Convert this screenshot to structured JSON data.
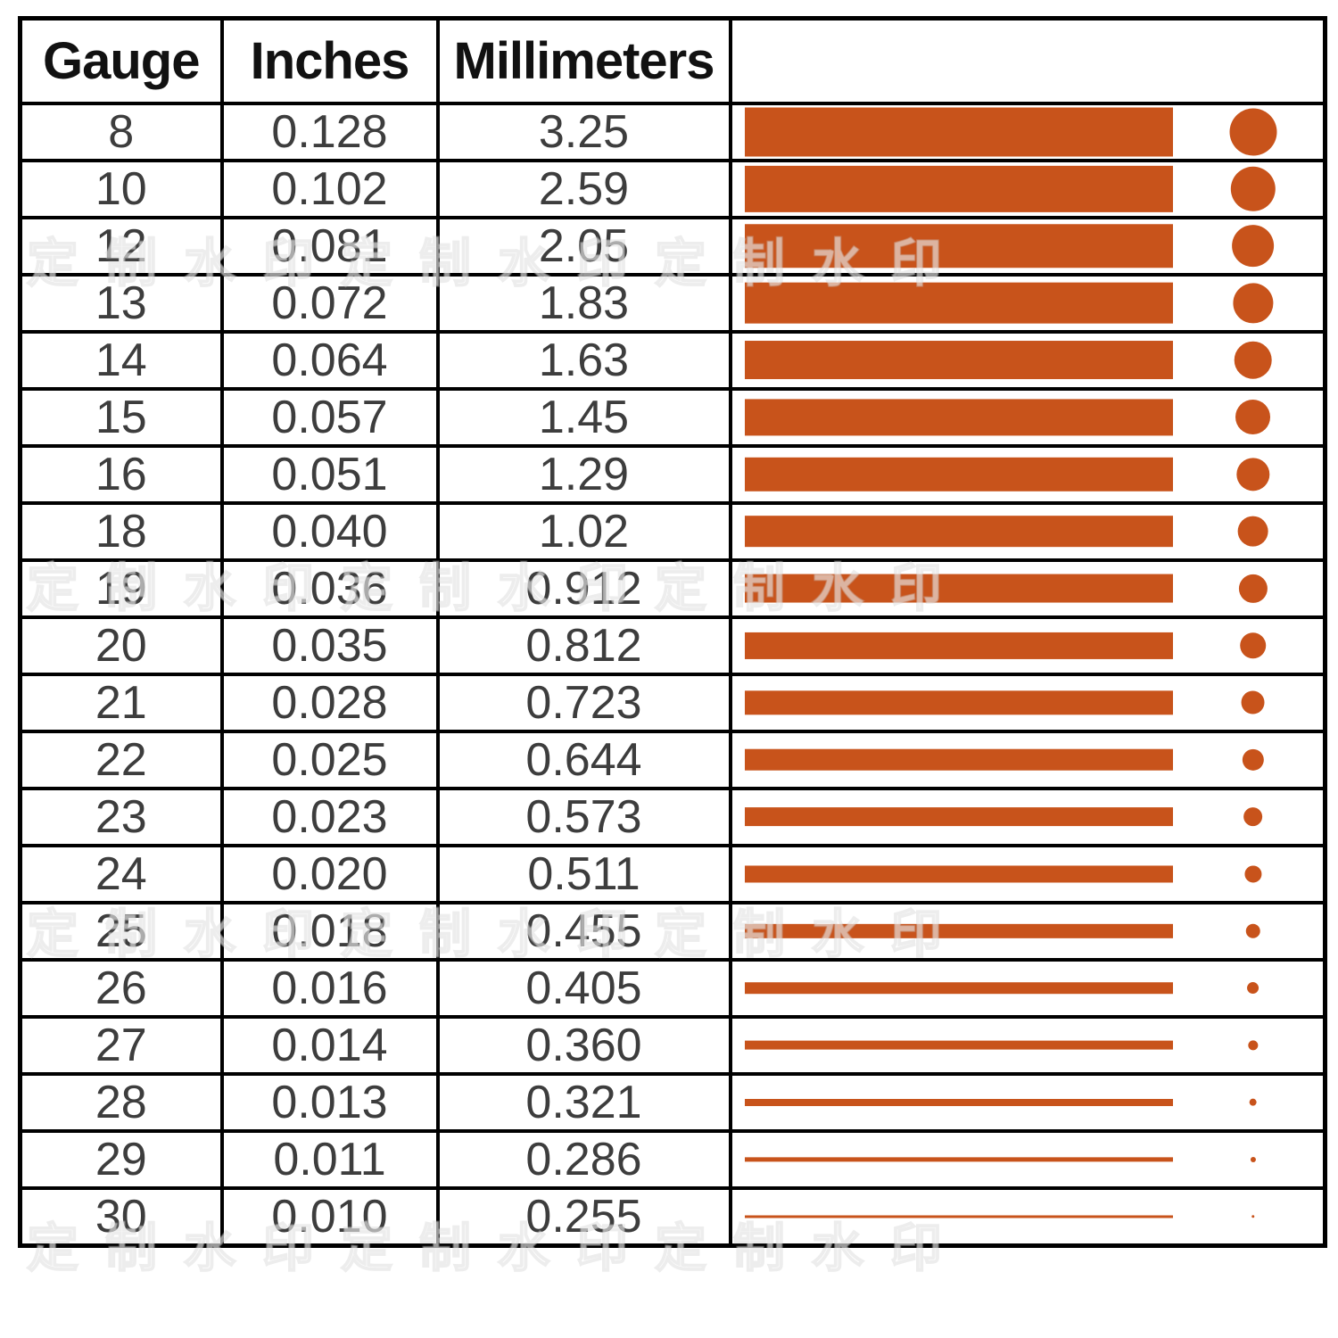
{
  "table": {
    "headers": {
      "gauge": "Gauge",
      "inches": "Inches",
      "millimeters": "Millimeters",
      "visual": ""
    },
    "rows": [
      {
        "gauge": "8",
        "inches": "0.128",
        "millimeters": "3.25"
      },
      {
        "gauge": "10",
        "inches": "0.102",
        "millimeters": "2.59"
      },
      {
        "gauge": "12",
        "inches": "0.081",
        "millimeters": "2.05"
      },
      {
        "gauge": "13",
        "inches": "0.072",
        "millimeters": "1.83"
      },
      {
        "gauge": "14",
        "inches": "0.064",
        "millimeters": "1.63"
      },
      {
        "gauge": "15",
        "inches": "0.057",
        "millimeters": "1.45"
      },
      {
        "gauge": "16",
        "inches": "0.051",
        "millimeters": "1.29"
      },
      {
        "gauge": "18",
        "inches": "0.040",
        "millimeters": "1.02"
      },
      {
        "gauge": "19",
        "inches": "0.036",
        "millimeters": "0.912"
      },
      {
        "gauge": "20",
        "inches": "0.035",
        "millimeters": "0.812"
      },
      {
        "gauge": "21",
        "inches": "0.028",
        "millimeters": "0.723"
      },
      {
        "gauge": "22",
        "inches": "0.025",
        "millimeters": "0.644"
      },
      {
        "gauge": "23",
        "inches": "0.023",
        "millimeters": "0.573"
      },
      {
        "gauge": "24",
        "inches": "0.020",
        "millimeters": "0.511"
      },
      {
        "gauge": "25",
        "inches": "0.018",
        "millimeters": "0.455"
      },
      {
        "gauge": "26",
        "inches": "0.016",
        "millimeters": "0.405"
      },
      {
        "gauge": "27",
        "inches": "0.014",
        "millimeters": "0.360"
      },
      {
        "gauge": "28",
        "inches": "0.013",
        "millimeters": "0.321"
      },
      {
        "gauge": "29",
        "inches": "0.011",
        "millimeters": "0.286"
      },
      {
        "gauge": "30",
        "inches": "0.010",
        "millimeters": "0.255"
      }
    ]
  },
  "colors": {
    "wire": "#C8531B",
    "border": "#000000",
    "cell_text": "#3D3D3D",
    "header_text": "#111111",
    "background": "#FFFFFF"
  },
  "watermark_text": "定制水印定制水印定制水印",
  "chart_data": {
    "type": "table",
    "columns": [
      "Gauge",
      "Inches",
      "Millimeters"
    ],
    "rows": [
      [
        8,
        0.128,
        3.25
      ],
      [
        10,
        0.102,
        2.59
      ],
      [
        12,
        0.081,
        2.05
      ],
      [
        13,
        0.072,
        1.83
      ],
      [
        14,
        0.064,
        1.63
      ],
      [
        15,
        0.057,
        1.45
      ],
      [
        16,
        0.051,
        1.29
      ],
      [
        18,
        0.04,
        1.02
      ],
      [
        19,
        0.036,
        0.912
      ],
      [
        20,
        0.035,
        0.812
      ],
      [
        21,
        0.028,
        0.723
      ],
      [
        22,
        0.025,
        0.644
      ],
      [
        23,
        0.023,
        0.573
      ],
      [
        24,
        0.02,
        0.511
      ],
      [
        25,
        0.018,
        0.455
      ],
      [
        26,
        0.016,
        0.405
      ],
      [
        27,
        0.014,
        0.36
      ],
      [
        28,
        0.013,
        0.321
      ],
      [
        29,
        0.011,
        0.286
      ],
      [
        30,
        0.01,
        0.255
      ]
    ],
    "visual_column": "horizontal wire bar and circular wire cross-section dot per row, sized largest (gauge 8) to thinnest (gauge 30)",
    "bar_color": "#C8531B",
    "grid": true,
    "legend_position": "none"
  }
}
